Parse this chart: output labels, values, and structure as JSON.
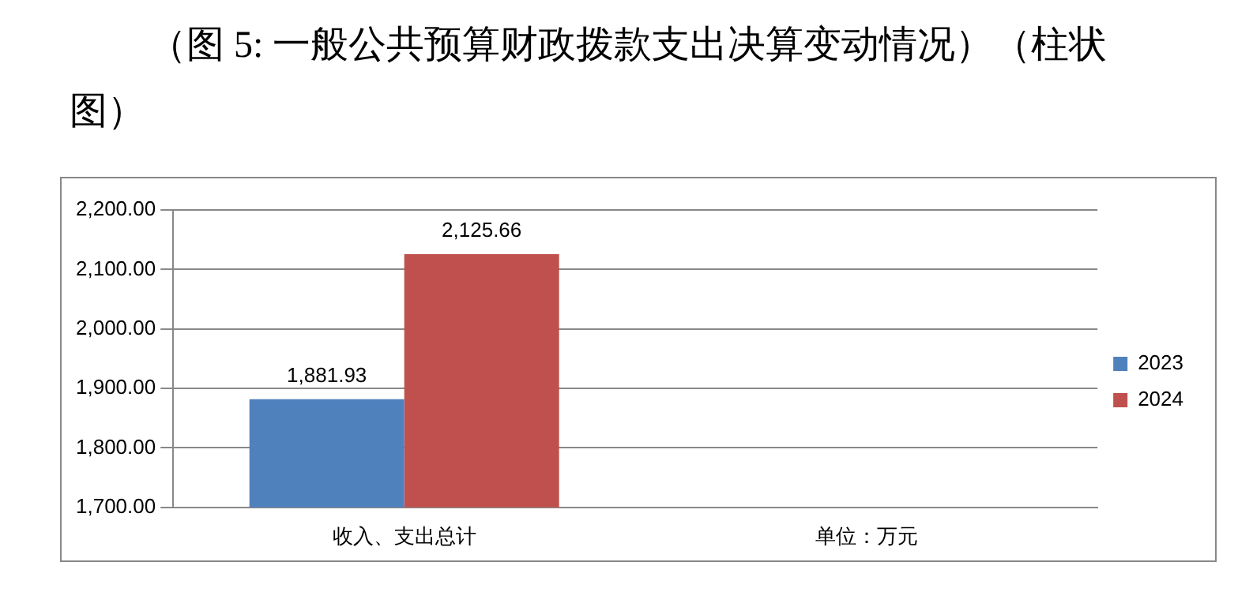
{
  "chart_data": {
    "type": "bar",
    "title": "（图 5: 一般公共预算财政拨款支出决算变动情况）（柱状图）",
    "categories": [
      "收入、支出总计",
      "单位：万元"
    ],
    "series": [
      {
        "name": "2023",
        "color": "#4f81bd",
        "values": [
          1881.93,
          null
        ],
        "value_labels": [
          "1,881.93",
          null
        ]
      },
      {
        "name": "2024",
        "color": "#c0504d",
        "values": [
          2125.66,
          null
        ],
        "value_labels": [
          "2,125.66",
          null
        ]
      }
    ],
    "ylim": [
      1700,
      2200
    ],
    "yticks": [
      {
        "value": 1700,
        "label": "1,700.00"
      },
      {
        "value": 1800,
        "label": "1,800.00"
      },
      {
        "value": 1900,
        "label": "1,900.00"
      },
      {
        "value": 2000,
        "label": "2,000.00"
      },
      {
        "value": 2100,
        "label": "2,100.00"
      },
      {
        "value": 2200,
        "label": "2,200.00"
      }
    ],
    "grid": "y",
    "legend": "right"
  }
}
